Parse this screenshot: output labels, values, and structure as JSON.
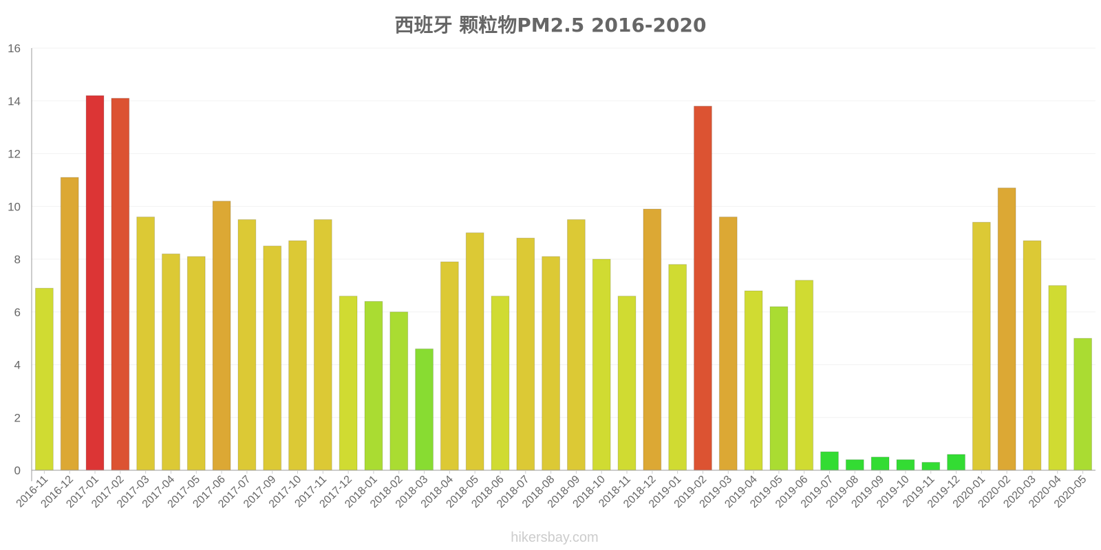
{
  "chart_data": {
    "type": "bar",
    "title": "西班牙 颗粒物PM2.5 2016-2020",
    "xlabel": "",
    "ylabel": "",
    "ylim": [
      0,
      16
    ],
    "yticks": [
      0,
      2,
      4,
      6,
      8,
      10,
      12,
      14,
      16
    ],
    "grid": true,
    "categories": [
      "2016-11",
      "2016-12",
      "2017-01",
      "2017-02",
      "2017-03",
      "2017-04",
      "2017-05",
      "2017-06",
      "2017-07",
      "2017-09",
      "2017-10",
      "2017-11",
      "2017-12",
      "2018-01",
      "2018-02",
      "2018-03",
      "2018-04",
      "2018-05",
      "2018-06",
      "2018-07",
      "2018-08",
      "2018-09",
      "2018-10",
      "2018-11",
      "2018-12",
      "2019-01",
      "2019-02",
      "2019-03",
      "2019-04",
      "2019-05",
      "2019-06",
      "2019-07",
      "2019-08",
      "2019-09",
      "2019-10",
      "2019-11",
      "2019-12",
      "2020-01",
      "2020-02",
      "2020-03",
      "2020-04",
      "2020-05"
    ],
    "values": [
      6.9,
      11.1,
      14.2,
      14.1,
      9.6,
      8.2,
      8.1,
      10.2,
      9.5,
      8.5,
      8.7,
      9.5,
      6.6,
      6.4,
      6.0,
      4.6,
      7.9,
      9.0,
      6.6,
      8.8,
      8.1,
      9.5,
      8.0,
      6.6,
      9.9,
      7.8,
      13.8,
      9.6,
      6.8,
      6.2,
      7.2,
      0.7,
      0.4,
      0.5,
      0.4,
      0.3,
      0.6,
      9.4,
      10.7,
      8.7,
      7.0,
      5.0
    ],
    "colors": [
      "#d0db32",
      "#dca834",
      "#dc3535",
      "#dc5332",
      "#dcc935",
      "#dcc935",
      "#dcc935",
      "#dca834",
      "#dcc935",
      "#dcc935",
      "#dcc935",
      "#dcc935",
      "#d0db32",
      "#aadc32",
      "#aadc32",
      "#88dc32",
      "#dcc935",
      "#dcc935",
      "#d0db32",
      "#dcc935",
      "#dcc935",
      "#dcc935",
      "#d0db32",
      "#d0db32",
      "#dca834",
      "#d0db32",
      "#dc5332",
      "#dca834",
      "#d0db32",
      "#aadc32",
      "#d0db32",
      "#33dc33",
      "#33dc33",
      "#33dc33",
      "#33dc33",
      "#33dc33",
      "#33dc33",
      "#dcc935",
      "#dca834",
      "#dcc935",
      "#d0db32",
      "#aadc32"
    ],
    "watermark": "hikersbay.com"
  }
}
